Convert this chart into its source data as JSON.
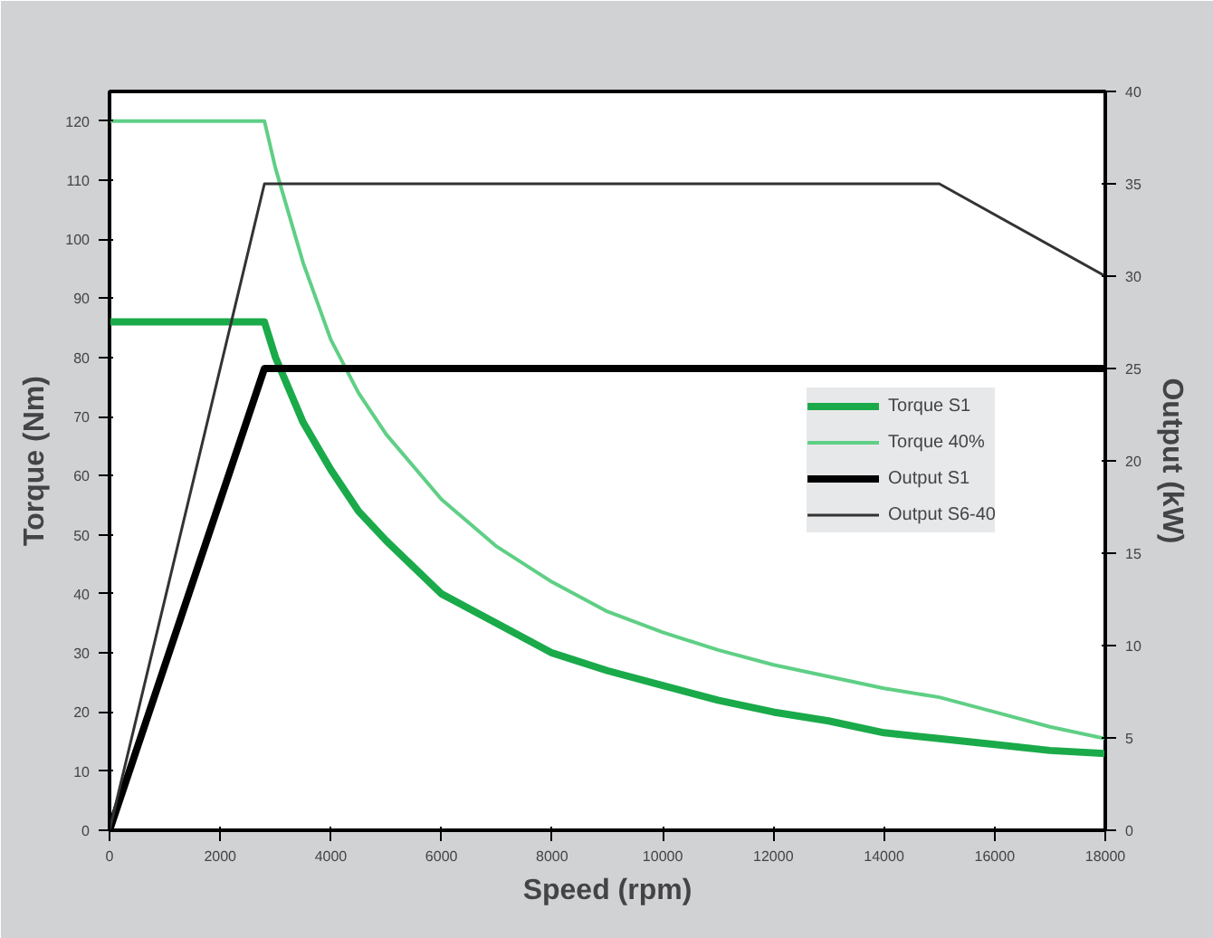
{
  "chart_data": {
    "type": "line",
    "xlabel": "Speed (rpm)",
    "ylabel": "Torque (Nm)",
    "y2label": "Output (kW)",
    "xlim": [
      0,
      18000
    ],
    "xticks": [
      0,
      2000,
      4000,
      6000,
      8000,
      10000,
      12000,
      14000,
      16000,
      18000
    ],
    "ylim": [
      0,
      125
    ],
    "yticks": [
      0,
      10,
      20,
      30,
      40,
      50,
      60,
      70,
      80,
      90,
      100,
      110,
      120
    ],
    "y2lim": [
      0,
      40
    ],
    "y2ticks": [
      0,
      5,
      10,
      15,
      20,
      25,
      30,
      35,
      40
    ],
    "grid": false,
    "legend": "right",
    "marker": "none",
    "line_style": "solid",
    "series": [
      {
        "name": "Torque S1",
        "color": "#1aaa4a",
        "x": [
          0,
          2800,
          3000,
          3500,
          4000,
          4500,
          5000,
          6000,
          7000,
          8000,
          9000,
          10000,
          11000,
          12000,
          13000,
          14000,
          15000,
          16000,
          17000,
          18000
        ],
        "values": [
          86,
          86,
          80,
          69,
          61,
          54,
          49,
          40,
          35,
          30,
          27,
          24.5,
          22,
          20,
          18.5,
          16.5,
          15.5,
          14.5,
          13.5,
          13
        ]
      },
      {
        "name": "Torque 40%",
        "color": "#5fcf85",
        "x": [
          0,
          2800,
          3000,
          3500,
          4000,
          4500,
          5000,
          6000,
          7000,
          8000,
          9000,
          10000,
          11000,
          12000,
          13000,
          14000,
          15000,
          16000,
          17000,
          18000
        ],
        "values": [
          120,
          120,
          112,
          96,
          83,
          74,
          67,
          56,
          48,
          42,
          37,
          33.5,
          30.5,
          28,
          26,
          24,
          22.5,
          20,
          17.5,
          15.5
        ]
      },
      {
        "name": "Output S1",
        "color": "#000000",
        "axis": "y2",
        "x": [
          0,
          2800,
          18000
        ],
        "values": [
          0,
          25,
          25
        ]
      },
      {
        "name": "Output S6-40",
        "color": "#333333",
        "axis": "y2",
        "x": [
          0,
          2800,
          15000,
          18000
        ],
        "values": [
          0,
          35,
          35,
          30
        ]
      }
    ]
  }
}
